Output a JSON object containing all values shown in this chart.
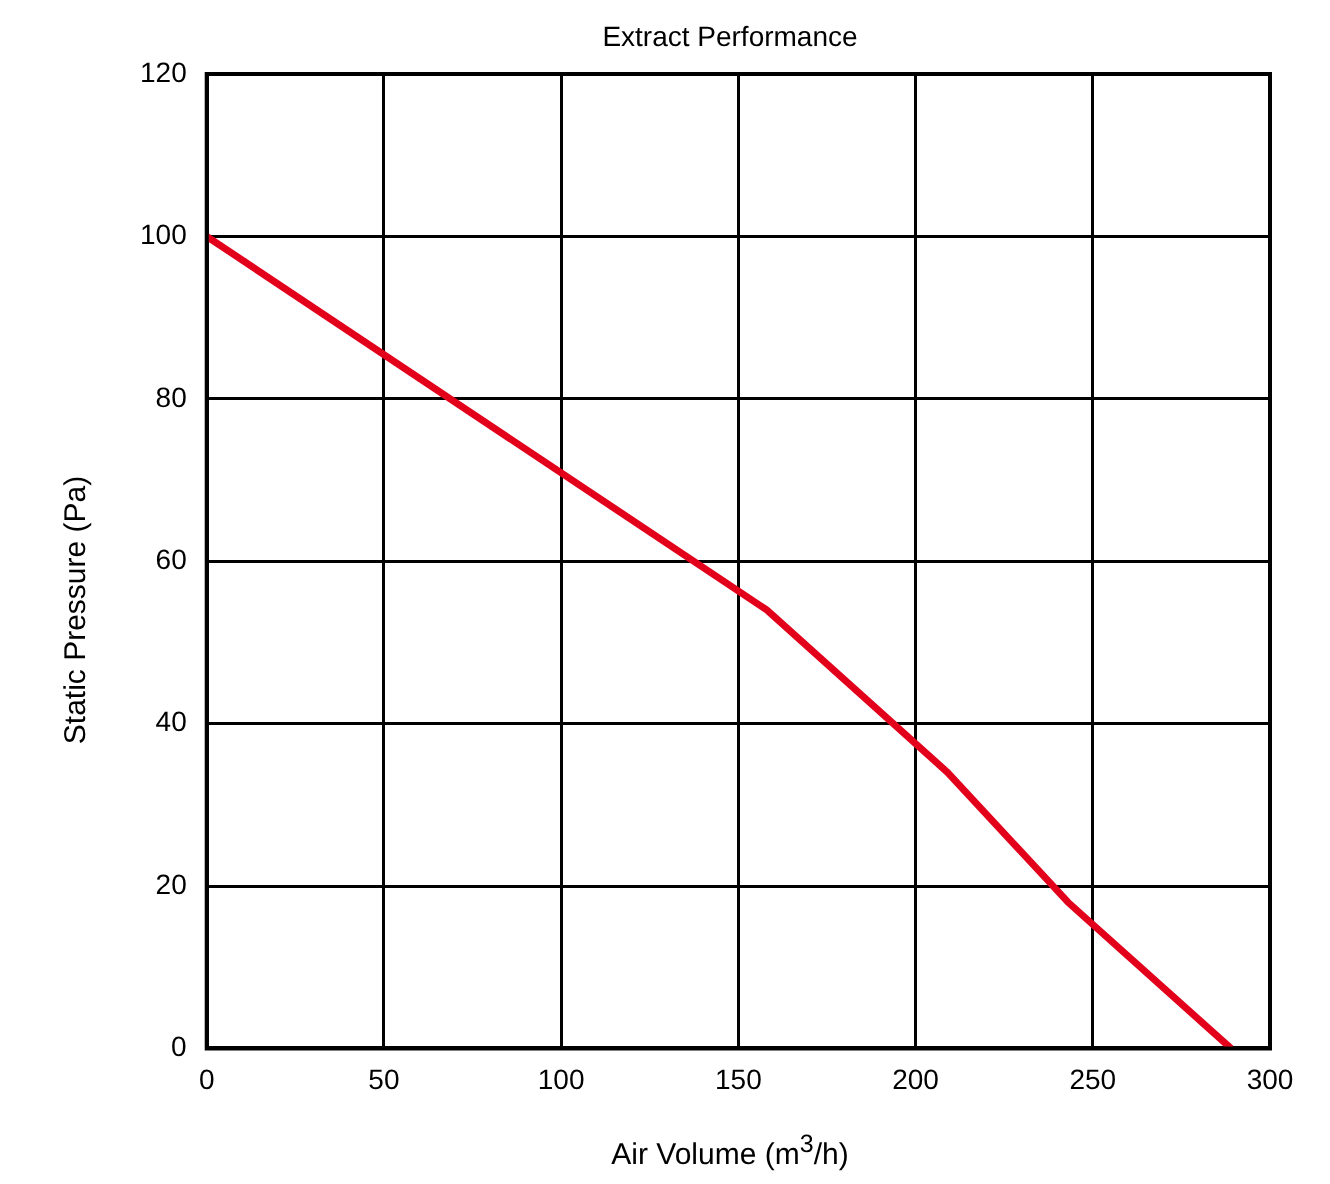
{
  "chart_data": {
    "type": "line",
    "title": "Extract Performance",
    "xlabel": "Air Volume (m$^{3}$/h)",
    "ylabel": "Static Pressure (Pa)",
    "x": [
      0,
      158,
      209,
      243,
      289
    ],
    "series": [
      {
        "color": "#e2001a",
        "values": [
          100,
          54,
          34,
          18,
          0
        ]
      }
    ],
    "xlim": [
      0,
      300
    ],
    "xticks": [
      0,
      50,
      100,
      150,
      200,
      250,
      300
    ],
    "ylim": [
      0,
      120
    ],
    "yticks": [
      0,
      20,
      40,
      60,
      80,
      100,
      120
    ],
    "grid": true,
    "legend": false,
    "marker": "none",
    "line_style": "solid"
  }
}
